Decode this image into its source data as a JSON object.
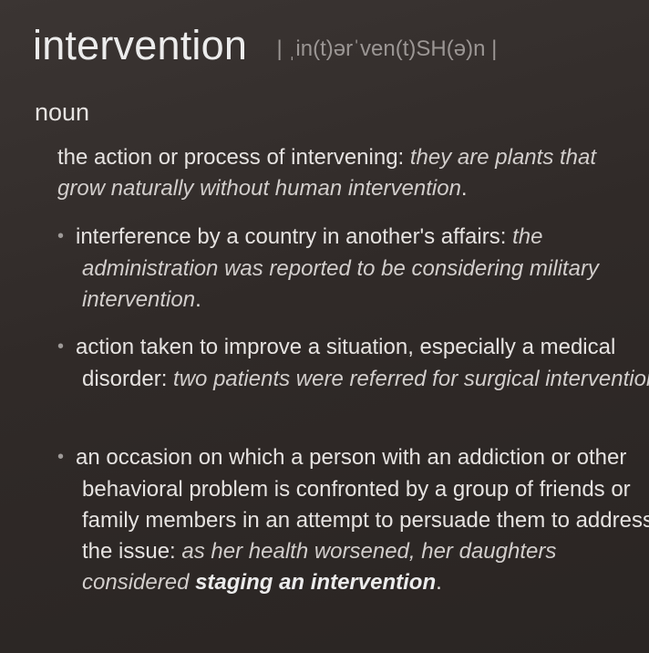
{
  "entry": {
    "headword": "intervention",
    "pronunciation": "| ˌin(t)ərˈven(t)SH(ə)n |",
    "part_of_speech": "noun"
  },
  "senses": [
    {
      "definition": "the action or process of intervening: ",
      "example": "they are plants that grow naturally without human intervention",
      "end": "."
    }
  ],
  "subsenses": [
    {
      "bullet": "•",
      "definition": "interference by a country in another's affairs: ",
      "example": "the administration was reported to be considering military intervention",
      "end": "."
    },
    {
      "bullet": "•",
      "definition": "action taken to improve a situation, especially a medical disorder: ",
      "example": "two patients were referred for surgical intervention",
      "end": "."
    },
    {
      "bullet": "•",
      "definition": "an occasion on which a person with an addiction or other behavioral problem is confronted by a group of friends or family members in an attempt to persuade them to address the issue: ",
      "example": "as her health worsened, her daughters considered ",
      "example_emphasis": "staging an intervention",
      "end": "."
    }
  ]
}
